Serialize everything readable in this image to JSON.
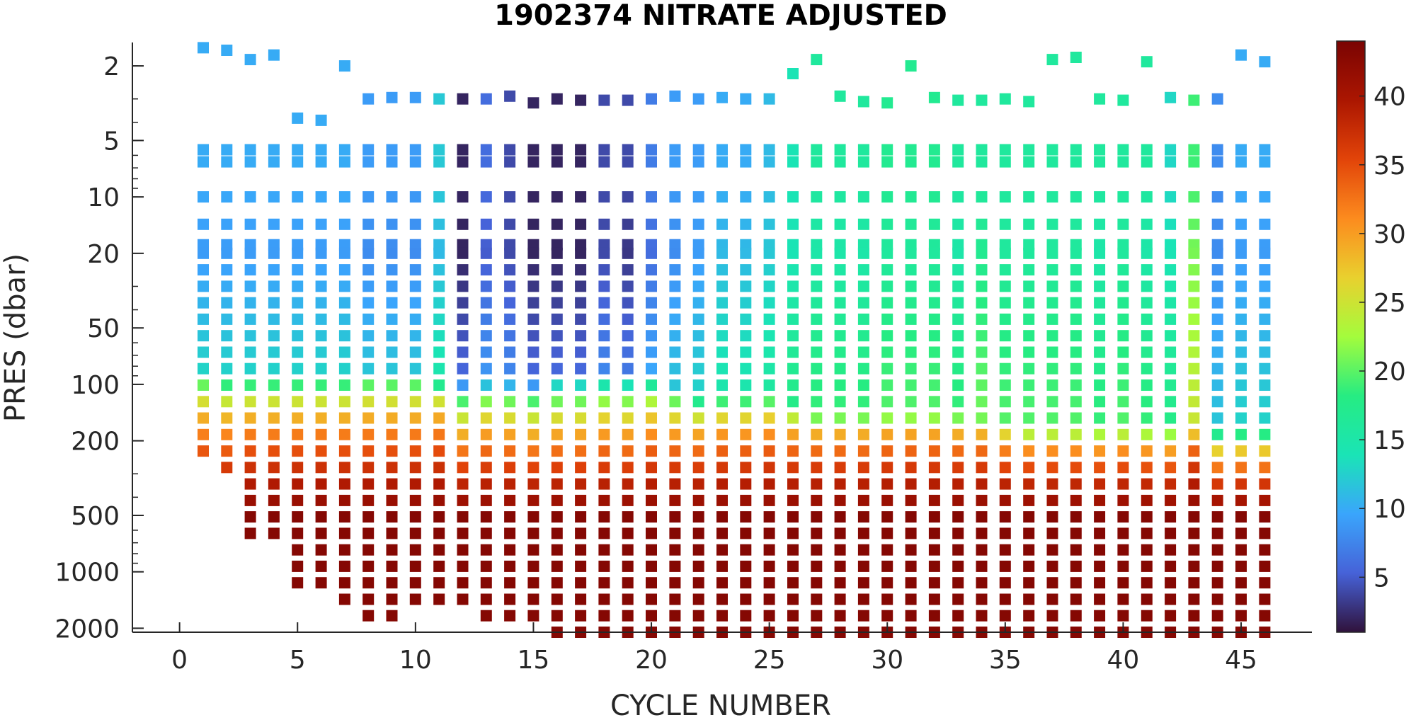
{
  "chart_data": {
    "type": "scatter",
    "title": "1902374  NITRATE ADJUSTED",
    "xlabel": "CYCLE NUMBER",
    "ylabel": "PRES (dbar)",
    "xlim": [
      -2,
      48
    ],
    "ylim": [
      1.5,
      2100
    ],
    "y_scale": "log",
    "y_reversed": true,
    "x_ticks": [
      0,
      5,
      10,
      15,
      20,
      25,
      30,
      35,
      40,
      45
    ],
    "y_ticks": [
      2,
      5,
      10,
      20,
      50,
      100,
      200,
      500,
      1000,
      2000
    ],
    "colorbar": {
      "colormap": "turbo",
      "range": [
        1,
        44
      ],
      "ticks": [
        5,
        10,
        15,
        20,
        25,
        30,
        35,
        40
      ]
    },
    "grid": false,
    "profiles": {
      "cycles": [
        1,
        2,
        3,
        4,
        5,
        6,
        7,
        8,
        9,
        10,
        11,
        12,
        13,
        14,
        15,
        16,
        17,
        18,
        19,
        20,
        21,
        22,
        23,
        24,
        25,
        26,
        27,
        28,
        29,
        30,
        31,
        32,
        33,
        34,
        35,
        36,
        37,
        38,
        39,
        40,
        41,
        42,
        43,
        44,
        45,
        46
      ],
      "surface_pressure": [
        1.6,
        1.65,
        1.85,
        1.75,
        3.8,
        3.9,
        2.0,
        3.0,
        2.95,
        2.95,
        3.0,
        3.0,
        3.0,
        2.9,
        3.15,
        3.0,
        3.05,
        3.05,
        3.05,
        3.0,
        2.9,
        3.0,
        2.95,
        3.0,
        3.0,
        2.2,
        1.85,
        2.9,
        3.1,
        3.15,
        2.0,
        2.95,
        3.05,
        3.05,
        3.0,
        3.1,
        1.85,
        1.8,
        3.0,
        3.05,
        1.9,
        2.95,
        3.05,
        3.0,
        1.75,
        1.9
      ],
      "surface_nitrate": [
        10,
        10,
        10,
        10,
        10,
        10,
        10,
        9,
        9,
        9,
        12,
        2,
        6,
        4,
        2,
        2,
        2,
        4,
        4,
        7,
        9,
        9,
        10,
        10,
        11,
        14,
        16,
        16,
        16,
        17,
        17,
        17,
        16,
        16,
        16,
        16,
        16,
        16,
        16,
        16,
        16,
        13,
        19,
        8,
        10,
        10
      ],
      "max_pressure": [
        270,
        290,
        700,
        700,
        1250,
        1250,
        1550,
        1900,
        2050,
        1450,
        1450,
        1450,
        1900,
        1900,
        2050,
        2100,
        2100,
        2100,
        2100,
        2100,
        2100,
        2100,
        2100,
        2100,
        2100,
        2100,
        2100,
        2100,
        2100,
        2100,
        2100,
        2100,
        2100,
        2100,
        2100,
        2100,
        2100,
        2100,
        2100,
        2100,
        2100,
        2100,
        2100,
        2100,
        2100,
        2100
      ],
      "upper_nitrate": [
        9,
        9,
        9,
        9,
        9,
        9,
        9,
        8,
        8,
        8,
        11,
        2,
        5,
        4,
        2,
        2,
        2,
        4,
        3,
        6,
        8,
        9,
        11,
        11,
        12,
        14,
        15,
        15,
        15,
        16,
        16,
        16,
        15,
        17,
        16,
        16,
        16,
        16,
        15,
        16,
        15,
        14,
        21,
        8,
        9,
        9
      ],
      "upper_bottom": [
        20,
        20,
        20,
        20,
        20,
        20,
        20,
        20,
        20,
        20,
        20,
        20,
        20,
        20,
        20,
        20,
        20,
        20,
        20,
        20,
        20,
        20,
        20,
        20,
        20,
        20,
        20,
        20,
        20,
        20,
        20,
        20,
        20,
        20,
        20,
        20,
        20,
        20,
        20,
        20,
        20,
        20,
        20,
        20,
        20,
        20
      ],
      "nitracline_top": [
        90,
        95,
        95,
        95,
        95,
        95,
        95,
        90,
        90,
        90,
        100,
        100,
        100,
        100,
        100,
        95,
        95,
        95,
        95,
        95,
        110,
        120,
        120,
        120,
        120,
        140,
        150,
        150,
        150,
        150,
        150,
        150,
        150,
        160,
        170,
        180,
        180,
        180,
        180,
        180,
        180,
        180,
        180,
        180,
        180,
        180
      ],
      "deep_nitrate": [
        42,
        42,
        43,
        43,
        43,
        43,
        43,
        43,
        43,
        43,
        43,
        43,
        43,
        43,
        43,
        43,
        43,
        43,
        43,
        43,
        43,
        43,
        43,
        43,
        43,
        43,
        43,
        43,
        43,
        43,
        43,
        43,
        43,
        43,
        43,
        43,
        43,
        43,
        43,
        43,
        43,
        43,
        43,
        43,
        43,
        43
      ]
    }
  }
}
